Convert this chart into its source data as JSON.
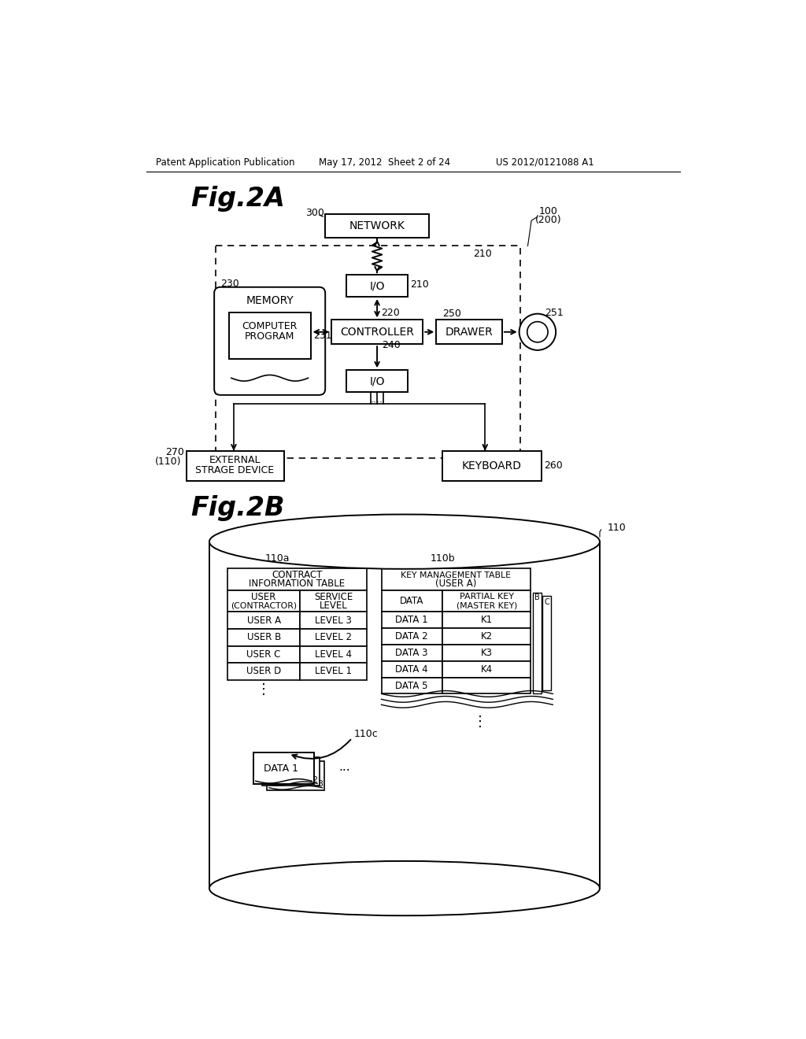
{
  "bg_color": "#ffffff",
  "header_text": "Patent Application Publication",
  "header_date": "May 17, 2012  Sheet 2 of 24",
  "header_patent": "US 2012/0121088 A1",
  "fig2a_label": "Fig.2A",
  "fig2b_label": "Fig.2B",
  "line_color": "#000000"
}
